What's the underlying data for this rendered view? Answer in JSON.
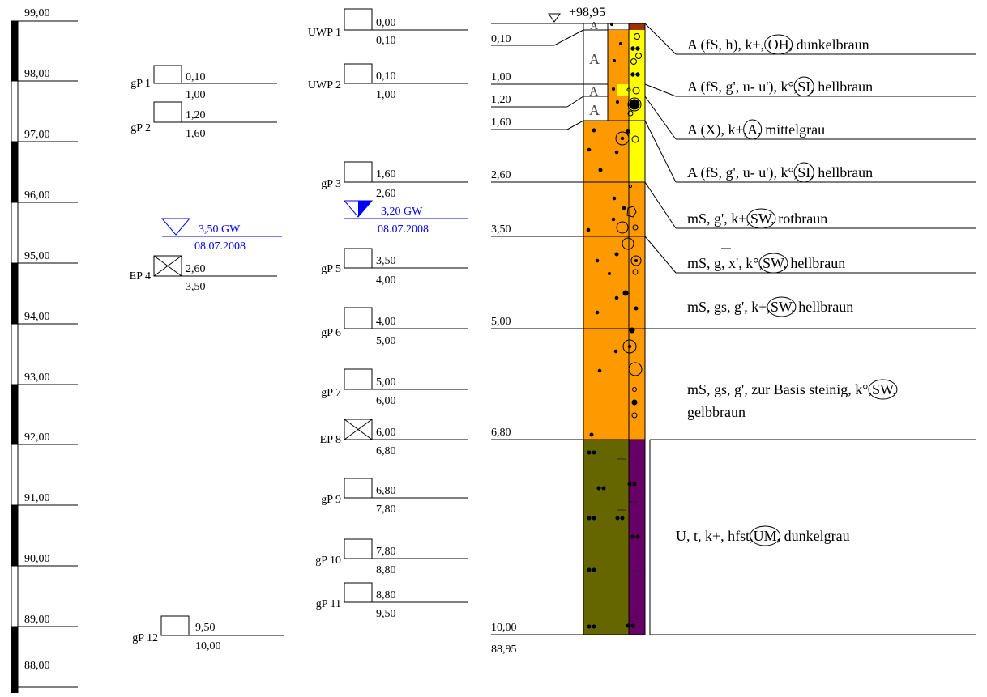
{
  "elevation_scale": {
    "labels": [
      "99,00",
      "98,00",
      "97,00",
      "96,00",
      "95,00",
      "94,00",
      "93,00",
      "92,00",
      "91,00",
      "90,00",
      "89,00",
      "88,00"
    ]
  },
  "samples_left": [
    {
      "name": "gP 1",
      "top": "0,10",
      "bottom": "1,00",
      "type": "box"
    },
    {
      "name": "gP 2",
      "top": "1,20",
      "bottom": "1,60",
      "type": "box"
    },
    {
      "name": "EP 4",
      "top": "2,60",
      "bottom": "3,50",
      "type": "cross"
    },
    {
      "name": "gP 12",
      "top": "9,50",
      "bottom": "10,00",
      "type": "box"
    }
  ],
  "groundwater_left": {
    "depth": "3,50 GW",
    "date": "08.07.2008"
  },
  "samples_mid": [
    {
      "name": "UWP 1",
      "top": "0,00",
      "bottom": "0,10",
      "type": "box"
    },
    {
      "name": "UWP 2",
      "top": "0,10",
      "bottom": "1,00",
      "type": "box"
    },
    {
      "name": "gP 3",
      "top": "1,60",
      "bottom": "2,60",
      "type": "box"
    },
    {
      "name": "gP 5",
      "top": "3,50",
      "bottom": "4,00",
      "type": "box"
    },
    {
      "name": "gP 6",
      "top": "4,00",
      "bottom": "5,00",
      "type": "box"
    },
    {
      "name": "gP 7",
      "top": "5,00",
      "bottom": "6,00",
      "type": "box"
    },
    {
      "name": "EP 8",
      "top": "6,00",
      "bottom": "6,80",
      "type": "cross"
    },
    {
      "name": "gP 9",
      "top": "6,80",
      "bottom": "7,80",
      "type": "box"
    },
    {
      "name": "gP 10",
      "top": "7,80",
      "bottom": "8,80",
      "type": "box"
    },
    {
      "name": "gP 11",
      "top": "8,80",
      "bottom": "9,50",
      "type": "box"
    }
  ],
  "groundwater_mid": {
    "depth": "3,20 GW",
    "date": "08.07.2008"
  },
  "profile": {
    "head_elevation": "+98,95",
    "bottom_elevation": "88,95",
    "depths": [
      "0,10",
      "1,00",
      "1,20",
      "1,60",
      "2,60",
      "3,50",
      "5,00",
      "6,80",
      "10,00"
    ],
    "colors": {
      "orange": "#FF9900",
      "yellow": "#FFFF00",
      "olive": "#666600",
      "purple": "#660066",
      "brown": "#993300",
      "gw_blue": "#0000FF"
    }
  },
  "layers": [
    {
      "prefix": "A (fS, h), k+, ",
      "code": "OH",
      "suffix": ", dunkelbraun"
    },
    {
      "prefix": "A (fS, g', u- u'), k°,",
      "code": "SI",
      "suffix": ", hellbraun"
    },
    {
      "prefix": "A (X), k+,",
      "code": "A",
      "suffix": ", mittelgrau"
    },
    {
      "prefix": "A (fS, g', u- u'), k°,",
      "code": "SI",
      "suffix": ", hellbraun"
    },
    {
      "prefix": "mS, g', k+,",
      "code": "SW",
      "suffix": ", rotbraun"
    },
    {
      "prefix": "mS, g, x', k°,",
      "code": "SW",
      "suffix": ", hellbraun"
    },
    {
      "prefix": "mS, gs, g', k+,",
      "code": "SW",
      "suffix": ", hellbraun"
    },
    {
      "prefix": "mS, gs, g', zur Basis steinig, k°,",
      "code": "SW",
      "suffix": ",",
      "line2": "gelbbraun"
    },
    {
      "prefix": "U, t, k+, hfst,",
      "code": "UM",
      "suffix": ", dunkelgrau"
    }
  ]
}
